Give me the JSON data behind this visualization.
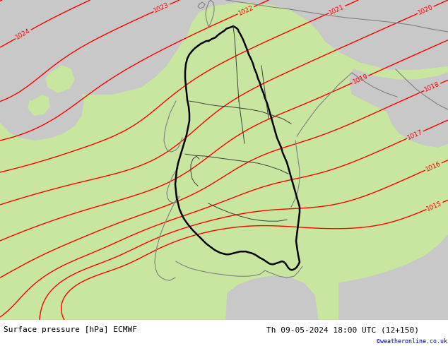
{
  "title_left": "Surface pressure [hPa] ECMWF",
  "title_right": "Th 09-05-2024 18:00 UTC (12+150)",
  "credit": "©weatheronline.co.uk",
  "bg_green": "#c8e6a0",
  "bg_gray": "#c8c8c8",
  "contour_color": "#ff0000",
  "border_black": "#000000",
  "border_gray": "#808080",
  "label_fontsize": 6.5,
  "title_fontsize": 8,
  "credit_color": "#0000cc",
  "figsize": [
    6.34,
    4.9
  ],
  "dpi": 100
}
